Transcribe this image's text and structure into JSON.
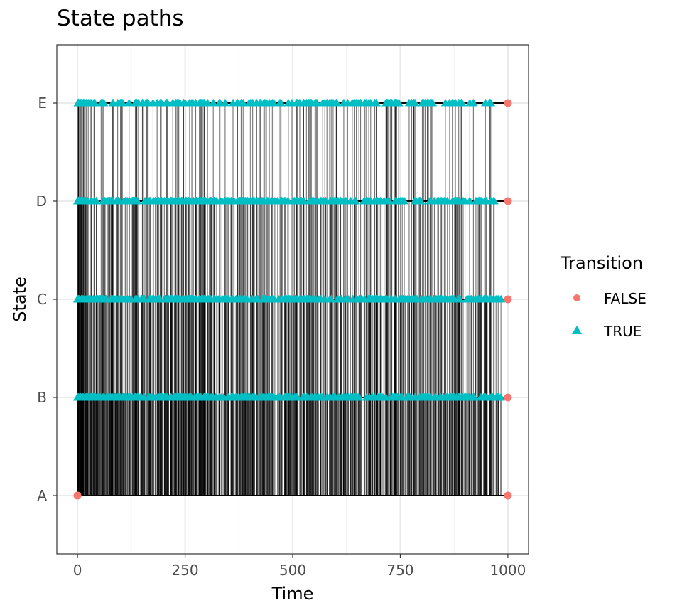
{
  "chart_data": {
    "type": "line",
    "title": "State paths",
    "xlabel": "Time",
    "ylabel": "State",
    "xlim": [
      -48,
      1048
    ],
    "x_ticks": [
      0,
      250,
      500,
      750,
      1000
    ],
    "x_tick_labels": [
      "0",
      "250",
      "500",
      "750",
      "1000"
    ],
    "y_categories": [
      "A",
      "B",
      "C",
      "D",
      "E"
    ],
    "grid": true,
    "legend": {
      "title": "Transition",
      "placement": "right",
      "entries": [
        {
          "label": "FALSE",
          "color": "#F8766D",
          "shape": "circle"
        },
        {
          "label": "TRUE",
          "color": "#00BFC4",
          "shape": "triangle"
        }
      ]
    },
    "path_color": "#000000",
    "time_range": [
      0,
      1000
    ],
    "path_endpoints": [
      {
        "x": 0,
        "state": "A",
        "transition": "FALSE"
      },
      {
        "x": 1000,
        "state": "A",
        "transition": "FALSE"
      },
      {
        "x": 1000,
        "state": "B",
        "transition": "FALSE"
      },
      {
        "x": 1000,
        "state": "C",
        "transition": "FALSE"
      },
      {
        "x": 1000,
        "state": "D",
        "transition": "FALSE"
      },
      {
        "x": 1000,
        "state": "E",
        "transition": "FALSE"
      }
    ],
    "transition_density": [
      {
        "state": "B",
        "from": 0,
        "to": 1000,
        "approx_transitions": 420
      },
      {
        "state": "C",
        "from": 0,
        "to": 1000,
        "approx_transitions": 340
      },
      {
        "state": "D",
        "from": 0,
        "to": 1000,
        "approx_transitions": 280
      },
      {
        "state": "E",
        "from": 0,
        "to": 1000,
        "approx_transitions": 190
      }
    ]
  }
}
